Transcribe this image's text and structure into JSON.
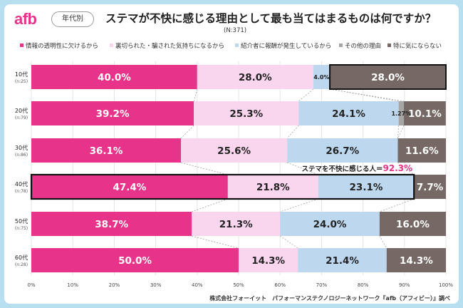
{
  "header": {
    "logo": "afb",
    "tag": "年代別",
    "title": "ステマが不快に感じる理由として最も当てはまるものは何ですか？",
    "sample": "(N:371)"
  },
  "footer": "株式会社フォーイット　パフォーマンステクノロジーネットワーク『afb（アフィビー）』調べ",
  "chart_data": {
    "type": "bar",
    "orientation": "horizontal",
    "stacked": true,
    "title": "ステマが不快に感じる理由として最も当てはまるものは何ですか？",
    "subtitle": "(N:371)",
    "categories": [
      "10代",
      "20代",
      "30代",
      "40代",
      "50代",
      "60代"
    ],
    "category_sub": [
      "(n:25)",
      "(n:79)",
      "(n:86)",
      "(n:78)",
      "(n:75)",
      "(n:28)"
    ],
    "series": [
      {
        "name": "情報の透明性に欠けるから",
        "color": "#e8338a",
        "values": [
          40.0,
          39.2,
          36.1,
          47.4,
          38.7,
          50.0
        ]
      },
      {
        "name": "裏切られた・騙された気持ちになるから",
        "color": "#fad6ee",
        "values": [
          28.0,
          25.3,
          25.6,
          21.8,
          21.3,
          14.3
        ]
      },
      {
        "name": "紹介者に報酬が発生しているから",
        "color": "#bdd7ee",
        "values": [
          4.0,
          24.1,
          26.7,
          23.1,
          24.0,
          21.4
        ]
      },
      {
        "name": "その他の理由",
        "color": "#a6a6a6",
        "values": [
          0.0,
          1.27,
          0.0,
          0.0,
          0.0,
          0.0
        ]
      },
      {
        "name": "特に気にならない",
        "color": "#756865",
        "values": [
          28.0,
          10.1,
          11.6,
          7.7,
          16.0,
          14.3
        ]
      }
    ],
    "labels": [
      [
        "40.0%",
        "28.0%",
        "4.0%",
        "",
        "28.0%"
      ],
      [
        "39.2%",
        "25.3%",
        "24.1%",
        "1.27%",
        "10.1%"
      ],
      [
        "36.1%",
        "25.6%",
        "26.7%",
        "",
        "11.6%"
      ],
      [
        "47.4%",
        "21.8%",
        "23.1%",
        "",
        "7.7%"
      ],
      [
        "38.7%",
        "21.3%",
        "24.0%",
        "",
        "16.0%"
      ],
      [
        "50.0%",
        "14.3%",
        "21.4%",
        "",
        "14.3%"
      ]
    ],
    "x_ticks": [
      "0%",
      "10%",
      "20%",
      "30%",
      "40%",
      "50%",
      "60%",
      "70%",
      "80%",
      "90%",
      "100%"
    ],
    "xlim": [
      0,
      100
    ],
    "annotation": {
      "text": "ステマを不快に感じる人＝",
      "value": "92.3%",
      "category": "40代"
    }
  }
}
